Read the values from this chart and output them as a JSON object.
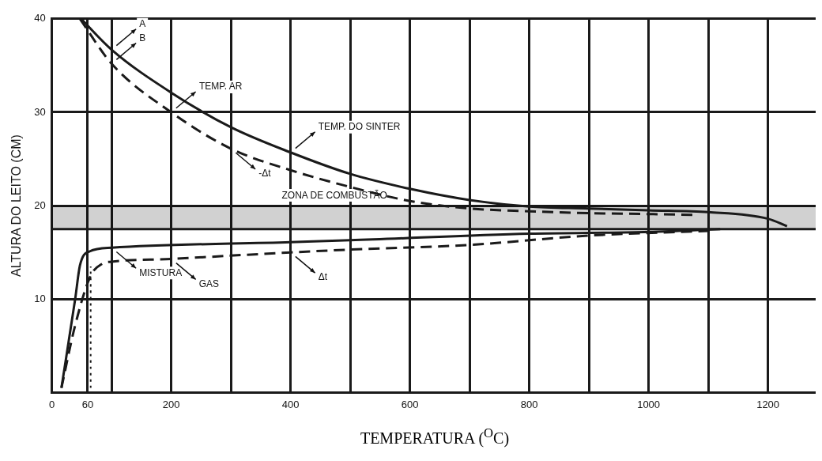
{
  "chart_data": {
    "type": "line",
    "xlabel": "TEMPERATURA ($^{O}$C)",
    "ylabel": "ALTURA DO LEITO (CM)",
    "xlim": [
      0,
      1280
    ],
    "ylim": [
      0,
      40
    ],
    "xticks": [
      0,
      60,
      {
        "value": 100,
        "label": null
      },
      200,
      {
        "value": 300,
        "label": null
      },
      400,
      {
        "value": 500,
        "label": null
      },
      600,
      {
        "value": 700,
        "label": null
      },
      800,
      {
        "value": 900,
        "label": null
      },
      1000,
      {
        "value": 1100,
        "label": null
      },
      1200
    ],
    "yticks": [
      10,
      20,
      30,
      40
    ],
    "grid": true,
    "legend": false,
    "marker": "none",
    "bands": [
      {
        "axis": "y",
        "from": 17.5,
        "to": 20,
        "color": "#000000",
        "label": "ZONA DE COMBUSTÃO"
      }
    ],
    "ref_lines": [
      {
        "axis": "y",
        "value": 17.5,
        "color": "#1a1a1a"
      }
    ],
    "series": [
      {
        "color": "#1a1a1a",
        "line_style": "solid",
        "x": [
          49,
          100,
          200,
          300,
          400,
          500,
          600,
          700,
          800,
          900,
          1000,
          1100,
          1200,
          1232
        ],
        "values": [
          40,
          36.7,
          32.1,
          28.4,
          25.7,
          23.4,
          21.8,
          20.6,
          19.9,
          19.7,
          19.5,
          19.3,
          18.6,
          17.8
        ]
      },
      {
        "color": "#1a1a1a",
        "line_style": "dashed",
        "x": [
          47,
          100,
          200,
          300,
          400,
          500,
          600,
          700,
          800,
          900,
          1000,
          1084
        ],
        "values": [
          40,
          35.2,
          30,
          26.1,
          23.8,
          22,
          20.5,
          19.7,
          19.4,
          19.2,
          19.1,
          19
        ]
      },
      {
        "color": "#1a1a1a",
        "line_style": "solid",
        "x": [
          16,
          39,
          47,
          63,
          100,
          400,
          500,
          800,
          1000,
          1120
        ],
        "values": [
          0.5,
          10,
          13.6,
          15.1,
          15.5,
          16.1,
          16.3,
          17,
          17.2,
          17.5
        ]
      },
      {
        "color": "#1a1a1a",
        "line_style": "dashed",
        "x": [
          16,
          39,
          65,
          85,
          100,
          200,
          400,
          500,
          700,
          900,
          1100
        ],
        "values": [
          0.5,
          7.2,
          12.5,
          13.8,
          14,
          14.3,
          15,
          15.3,
          15.8,
          16.8,
          17.3
        ]
      },
      {
        "color": "#1a1a1a",
        "line_style": "dotted",
        "x": [
          65,
          65
        ],
        "values": [
          0.5,
          13.5
        ]
      }
    ],
    "annotations": [
      {
        "text": "A",
        "x": 100,
        "y": 36.7
      },
      {
        "text": "B",
        "x": 100,
        "y": 35.2
      },
      {
        "text": "TEMP. AR",
        "x": 200,
        "y": 30
      },
      {
        "text": "-Δt",
        "x": 300,
        "y": 26.1
      },
      {
        "text": "TEMP. DO SINTER",
        "x": 400,
        "y": 25.7
      },
      {
        "text": "MISTURA",
        "x": 100,
        "y": 15.5
      },
      {
        "text": "GAS",
        "x": 200,
        "y": 14.3
      },
      {
        "text": "Δt",
        "x": 400,
        "y": 15
      }
    ]
  }
}
